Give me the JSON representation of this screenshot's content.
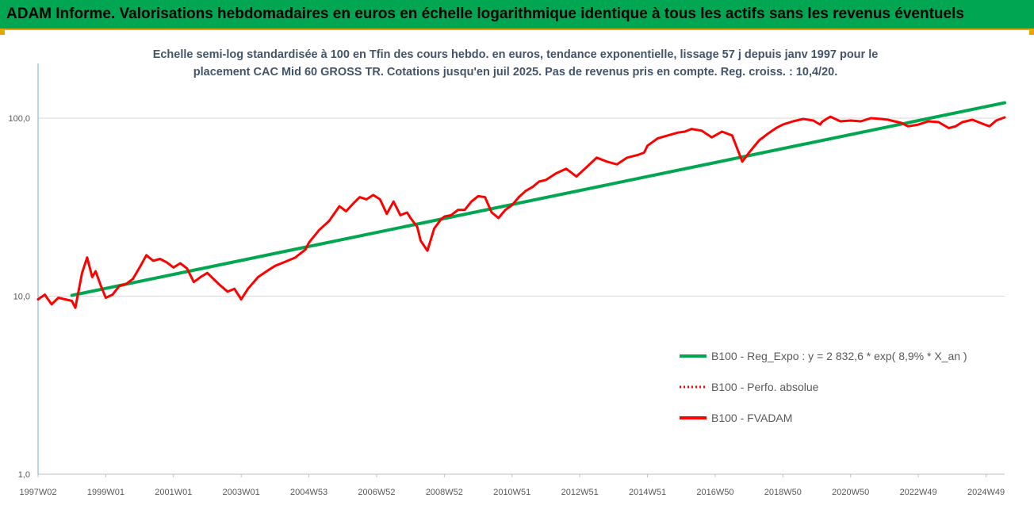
{
  "header": {
    "title": "ADAM Informe. Valorisations hebdomadaires en euros en échelle logarithmique identique à tous les actifs sans les revenus éventuels"
  },
  "chart_data": {
    "type": "line",
    "title": "",
    "subtitle_lines": [
      "Echelle semi-log standardisée à 100 en Tfin des cours hebdo. en euros, tendance exponentielle, lissage 57 j depuis janv 1997 pour le",
      "placement CAC Mid 60 GROSS TR. Cotations jusqu'en juil 2025. Pas de revenus pris en compte. Reg. croiss. : 10,4/20."
    ],
    "xlabel": "",
    "ylabel": "",
    "y_scale": "log",
    "ylim": [
      1,
      140
    ],
    "y_ticks": [
      "1,0",
      "10,0",
      "100,0"
    ],
    "y_tick_values": [
      1,
      10,
      100
    ],
    "x_ticks": [
      "1997W02",
      "1999W01",
      "2001W01",
      "2003W01",
      "2004W53",
      "2006W52",
      "2008W52",
      "2010W51",
      "2012W51",
      "2014W51",
      "2016W50",
      "2018W50",
      "2020W50",
      "2022W49",
      "2024W49"
    ],
    "x_tick_years": [
      1997.0,
      1999.0,
      2001.0,
      2003.0,
      2005.0,
      2007.0,
      2009.0,
      2011.0,
      2013.0,
      2015.0,
      2017.0,
      2019.0,
      2021.0,
      2023.0,
      2025.0
    ],
    "xlim": [
      1997.0,
      2025.55
    ],
    "grid": "horizontal",
    "legend_placement": "center-right",
    "series": [
      {
        "name": "B100 - Reg_Expo : y = 2 832,6 * exp( 8,9% *  X_an )",
        "color": "#00a650",
        "style": "solid",
        "x": [
          1998.0,
          2025.55
        ],
        "y": [
          10.1,
          122
        ]
      },
      {
        "name": "B100 - Perfo. absolue",
        "color": "#ff0000",
        "style": "dotted",
        "x": [],
        "y": []
      },
      {
        "name": "B100 - FVADAM",
        "color": "#ff0000",
        "style": "solid",
        "x": [
          1997.0,
          1997.2,
          1997.4,
          1997.6,
          1997.8,
          1998.0,
          1998.1,
          1998.3,
          1998.45,
          1998.6,
          1998.7,
          1998.85,
          1999.0,
          1999.2,
          1999.4,
          1999.6,
          1999.8,
          2000.0,
          2000.2,
          2000.4,
          2000.6,
          2000.8,
          2001.0,
          2001.2,
          2001.4,
          2001.6,
          2001.8,
          2002.0,
          2002.2,
          2002.4,
          2002.6,
          2002.8,
          2003.0,
          2003.2,
          2003.5,
          2003.8,
          2004.0,
          2004.3,
          2004.6,
          2004.9,
          2005.0,
          2005.3,
          2005.6,
          2005.9,
          2006.1,
          2006.3,
          2006.5,
          2006.7,
          2006.9,
          2007.1,
          2007.3,
          2007.5,
          2007.7,
          2007.9,
          2008.0,
          2008.2,
          2008.3,
          2008.5,
          2008.7,
          2008.9,
          2009.0,
          2009.2,
          2009.4,
          2009.6,
          2009.8,
          2010.0,
          2010.2,
          2010.4,
          2010.6,
          2010.8,
          2011.0,
          2011.2,
          2011.4,
          2011.6,
          2011.8,
          2012.0,
          2012.3,
          2012.6,
          2012.9,
          2013.2,
          2013.5,
          2013.8,
          2014.1,
          2014.4,
          2014.7,
          2014.9,
          2015.0,
          2015.3,
          2015.6,
          2015.9,
          2016.1,
          2016.3,
          2016.6,
          2016.9,
          2017.2,
          2017.5,
          2017.8,
          2018.0,
          2018.3,
          2018.6,
          2018.8,
          2019.0,
          2019.3,
          2019.6,
          2019.9,
          2020.1,
          2020.15,
          2020.25,
          2020.4,
          2020.7,
          2021.0,
          2021.3,
          2021.6,
          2021.9,
          2022.1,
          2022.3,
          2022.5,
          2022.7,
          2023.0,
          2023.3,
          2023.6,
          2023.9,
          2024.1,
          2024.3,
          2024.6,
          2024.9,
          2025.1,
          2025.3,
          2025.55
        ],
        "y": [
          9.6,
          10.2,
          9.0,
          9.8,
          9.6,
          9.4,
          8.6,
          13.5,
          16.5,
          12.8,
          13.8,
          11.5,
          9.8,
          10.2,
          11.4,
          11.7,
          12.5,
          14.5,
          17.0,
          15.8,
          16.2,
          15.5,
          14.5,
          15.3,
          14.3,
          12.0,
          12.8,
          13.5,
          12.4,
          11.4,
          10.6,
          11.0,
          9.6,
          11.0,
          12.8,
          14.0,
          14.8,
          15.6,
          16.5,
          18.3,
          20.0,
          23.5,
          26.5,
          32.0,
          30.0,
          33.0,
          36.0,
          35.0,
          37.0,
          35.0,
          29.0,
          34.0,
          28.5,
          29.5,
          27.5,
          24.5,
          20.5,
          18.0,
          24.0,
          27.0,
          28.0,
          28.5,
          30.5,
          30.5,
          34.0,
          36.5,
          36.0,
          29.5,
          27.5,
          30.5,
          32.5,
          36.0,
          39.0,
          41.0,
          44.0,
          45.0,
          49.0,
          52.0,
          47.0,
          53.0,
          60.0,
          57.0,
          55.0,
          60.0,
          62.0,
          64.0,
          70.0,
          77.0,
          80.0,
          83.0,
          84.0,
          87.0,
          85.0,
          78.0,
          84.0,
          80.0,
          57.0,
          64.0,
          75.0,
          83.0,
          88.0,
          92.0,
          96.0,
          99.0,
          97.0,
          92.0,
          95.0,
          98.0,
          102.0,
          96.0,
          97.0,
          96.0,
          100.0,
          99.0,
          98.0,
          96.0,
          94.0,
          90.0,
          92.0,
          96.0,
          95.0,
          88.0,
          90.0,
          95.0,
          98.0,
          93.0,
          90.0,
          97.0,
          101.0
        ]
      }
    ]
  },
  "legend": {
    "entries": [
      {
        "label": "B100 - Reg_Expo : y = 2 832,6 * exp( 8,9% *  X_an )",
        "color": "#00a650",
        "style": "solid"
      },
      {
        "label": "B100 - Perfo. absolue",
        "color": "#ff0000",
        "style": "dotted"
      },
      {
        "label": "B100 - FVADAM",
        "color": "#ff0000",
        "style": "solid"
      }
    ]
  },
  "colors": {
    "banner": "#00a651",
    "accent_border": "#e8a600",
    "subtitle_text": "#44546a",
    "gridline": "#d9d9d9",
    "axis": "#9dc3e6"
  }
}
